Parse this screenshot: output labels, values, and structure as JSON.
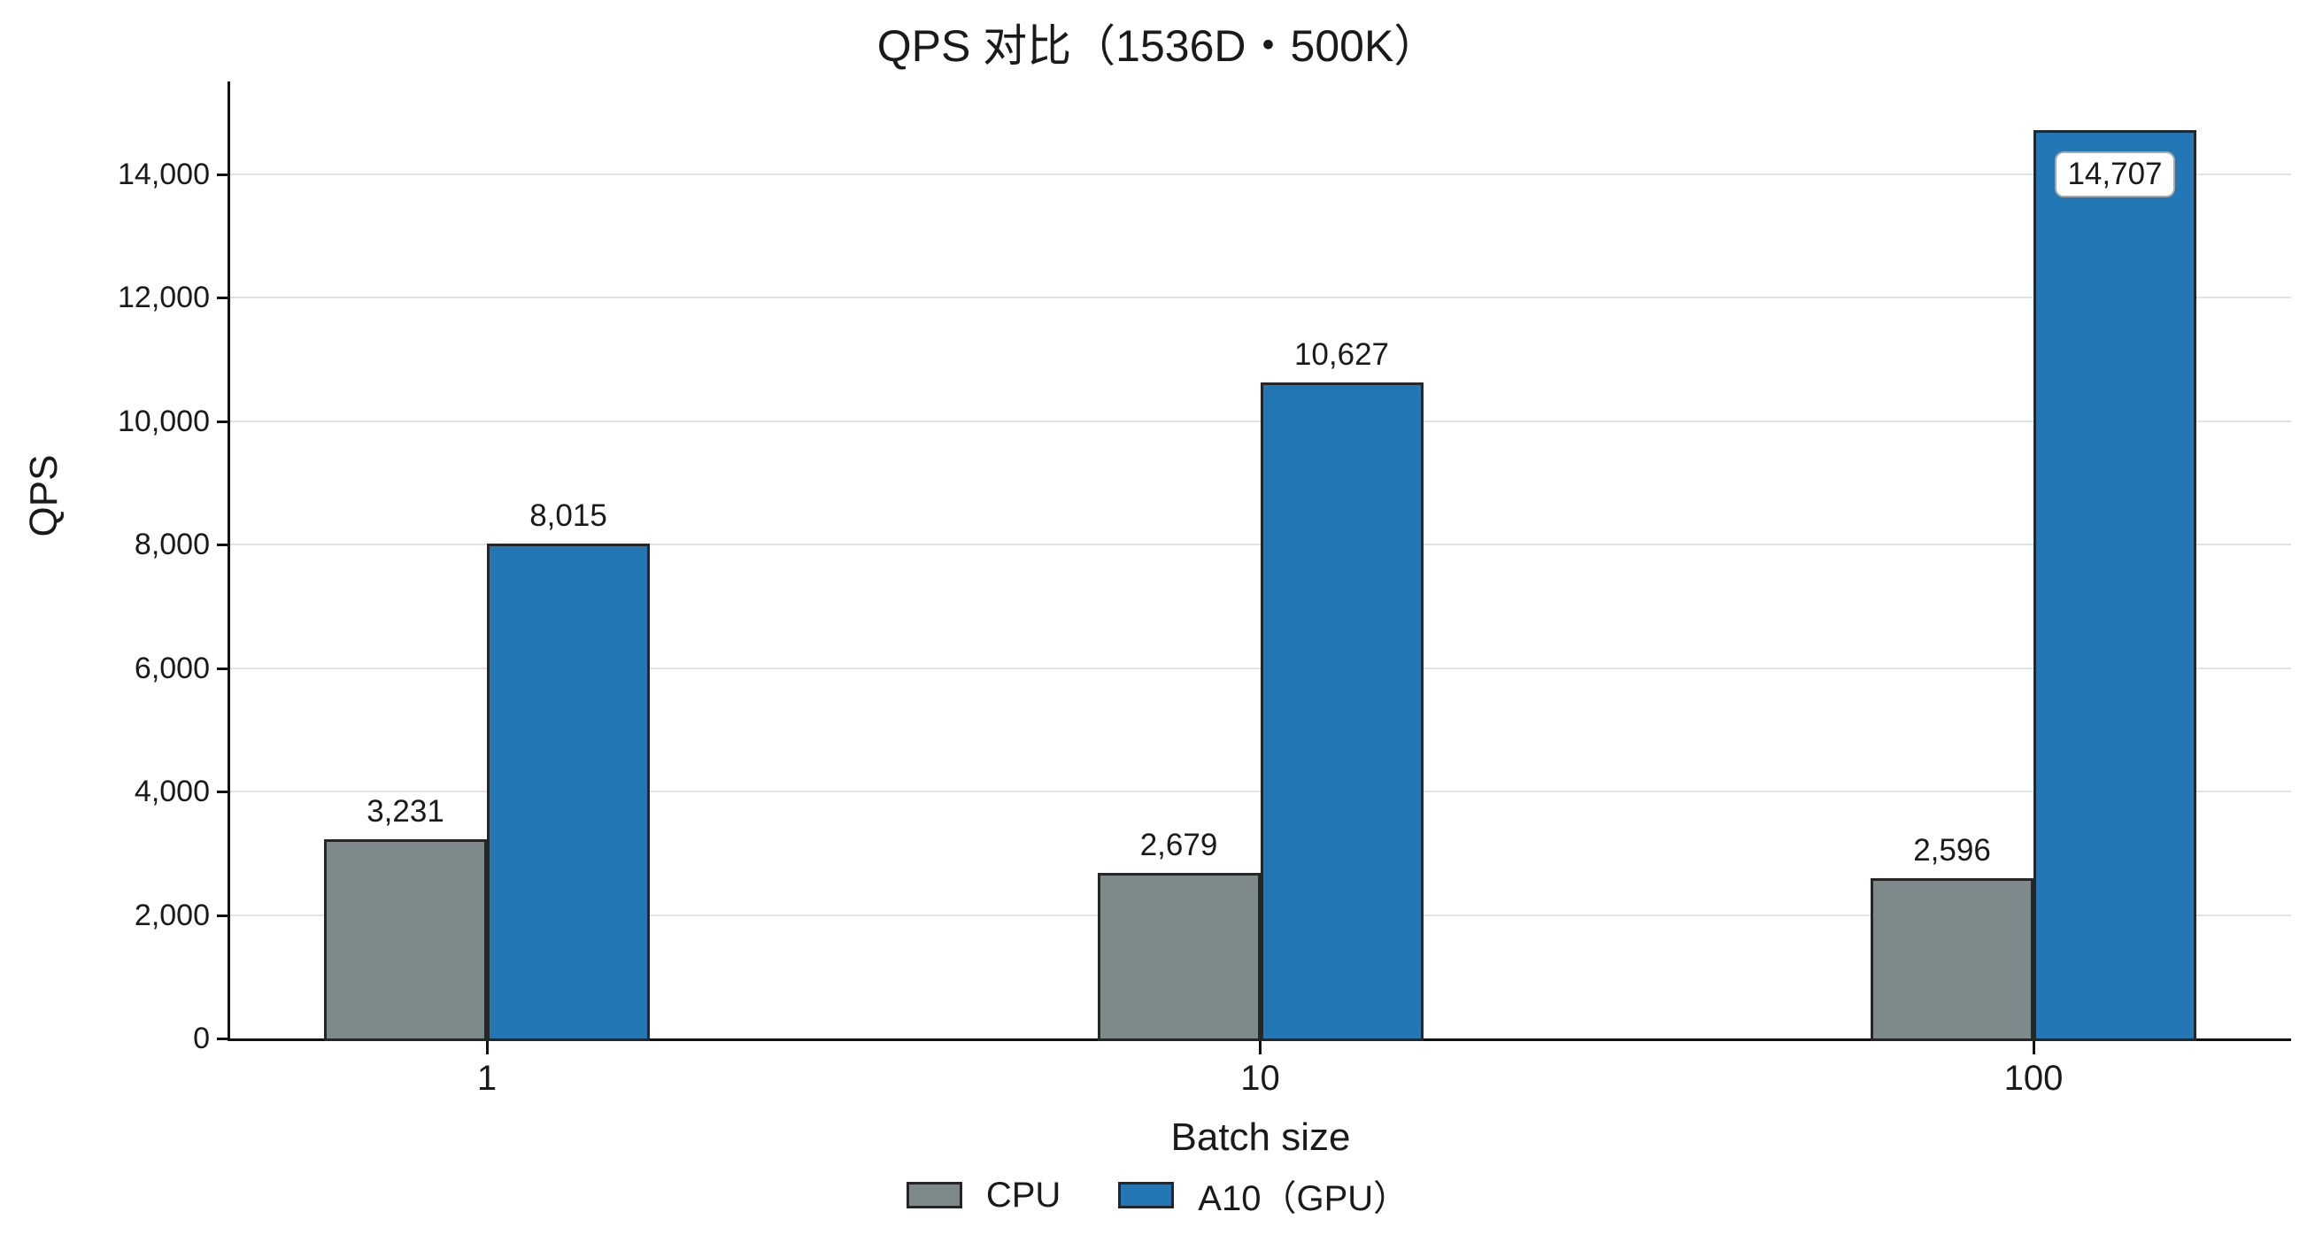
{
  "chart_data": {
    "type": "bar",
    "title": "QPS 对比（1536D・500K）",
    "xlabel": "Batch size",
    "ylabel": "QPS",
    "categories": [
      "1",
      "10",
      "100"
    ],
    "series": [
      {
        "name": "CPU",
        "color": "#7e898b",
        "values": [
          3231,
          2679,
          2596
        ],
        "labels": [
          "3,231",
          "2,679",
          "2,596"
        ],
        "boxed": [
          false,
          false,
          false
        ]
      },
      {
        "name": "A10（GPU）",
        "color": "#2277b4",
        "values": [
          8015,
          10627,
          14707
        ],
        "labels": [
          "8,015",
          "10,627",
          "14,707"
        ],
        "boxed": [
          false,
          false,
          true
        ]
      }
    ],
    "ylim": [
      0,
      15500
    ],
    "yticks": [
      0,
      2000,
      4000,
      6000,
      8000,
      10000,
      12000,
      14000
    ],
    "ytick_labels": [
      "0",
      "2,000",
      "4,000",
      "6,000",
      "8,000",
      "10,000",
      "12,000",
      "14,000"
    ],
    "grid": "horizontal",
    "grid_color": "#e2e2e2",
    "bar_edge_color": "#262626",
    "axis_color": "#111111",
    "text_color": "#1a1a1a",
    "legend_position": "bottom-center"
  }
}
